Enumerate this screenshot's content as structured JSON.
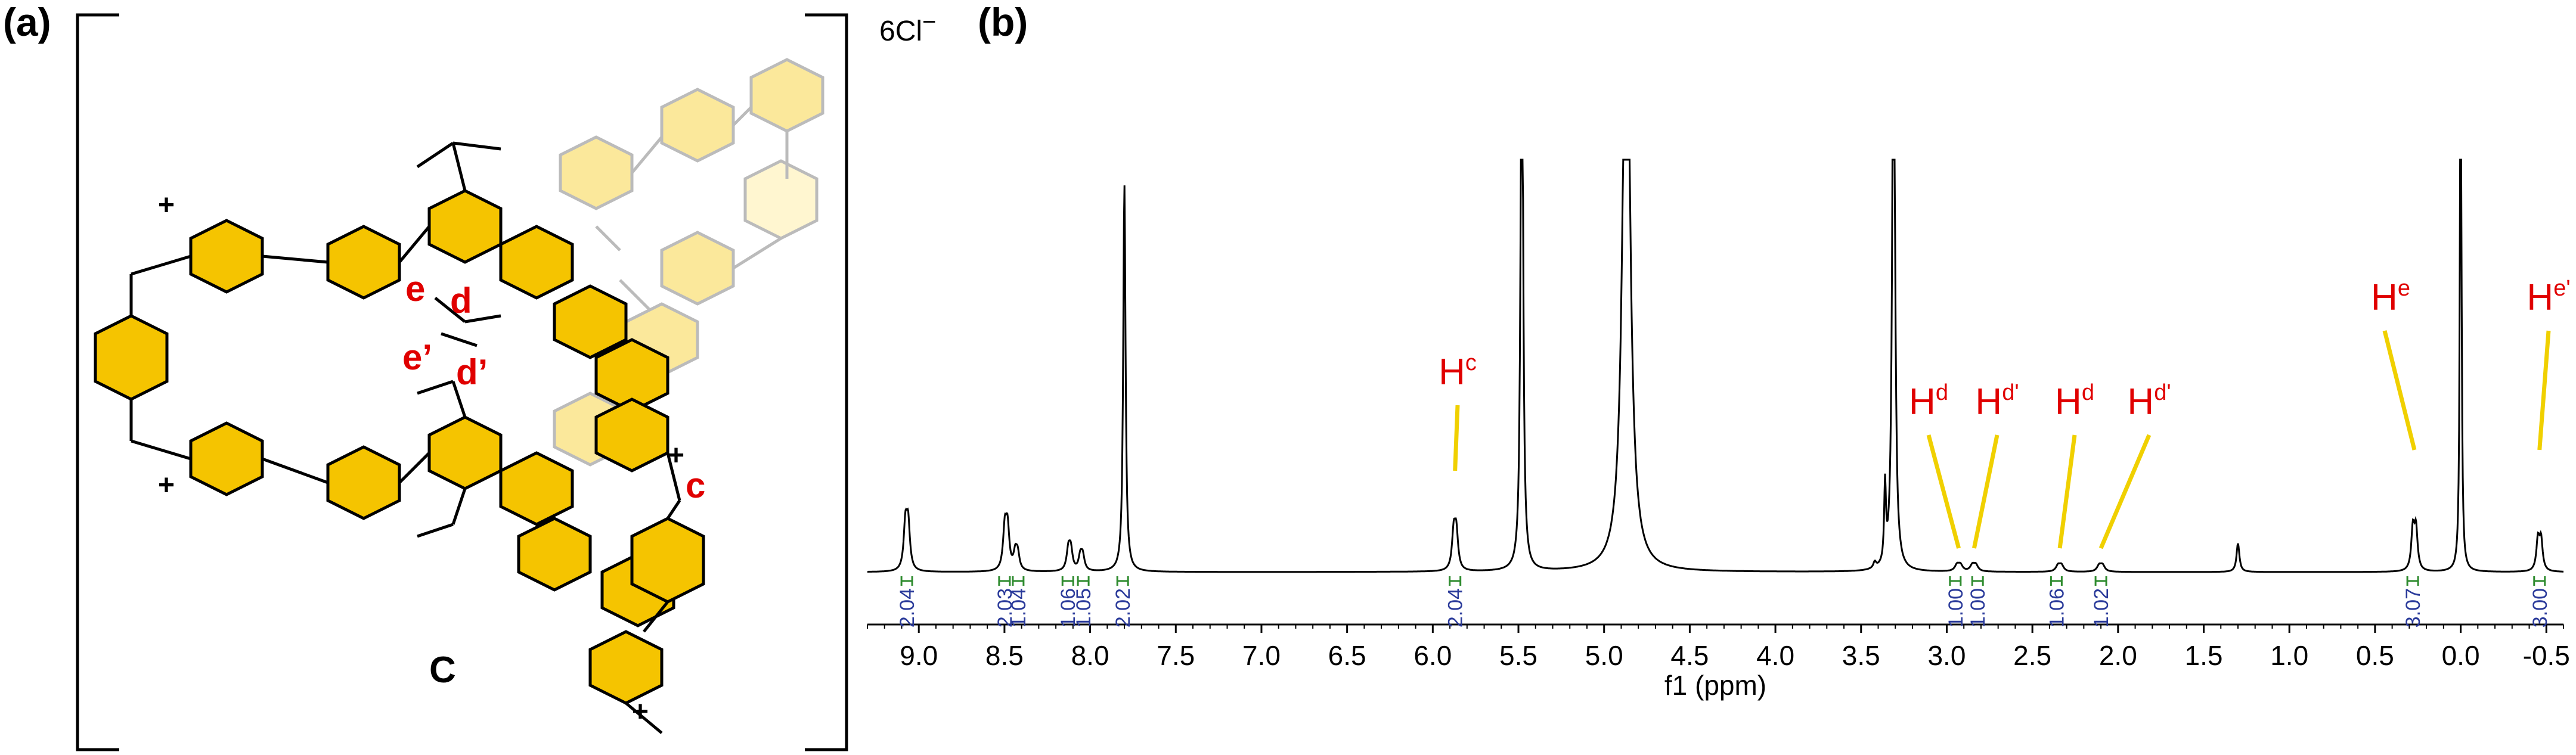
{
  "panel_a": {
    "label": "(a)",
    "compound_label": "C",
    "counterion": "6Cl",
    "counterion_charge": "−",
    "position_labels": [
      {
        "id": "e",
        "text": "e"
      },
      {
        "id": "d",
        "text": "d"
      },
      {
        "id": "e-prime",
        "text": "e’"
      },
      {
        "id": "d-prime",
        "text": "d’"
      },
      {
        "id": "c",
        "text": "c"
      }
    ],
    "charges": [
      "+",
      "+",
      "+",
      "+",
      "+",
      "+"
    ],
    "colors": {
      "ring_fill": "#f5c400",
      "ring_stroke": "#000000",
      "faded": "#b0b0b0",
      "faded_fill": "#fbe58a",
      "label_red": "#e00000"
    }
  },
  "panel_b": {
    "label": "(b)"
  },
  "chart_data": {
    "type": "line",
    "title": "",
    "xlabel": "f1 (ppm)",
    "ylabel": "",
    "xlim": [
      9.3,
      -0.6
    ],
    "x_reversed": true,
    "xticks": [
      9.0,
      8.5,
      8.0,
      7.5,
      7.0,
      6.5,
      6.0,
      5.5,
      5.0,
      4.5,
      4.0,
      3.5,
      3.0,
      2.5,
      2.0,
      1.5,
      1.0,
      0.5,
      0.0,
      -0.5
    ],
    "xtick_labels": [
      "9.0",
      "8.5",
      "8.0",
      "7.5",
      "7.0",
      "6.5",
      "6.0",
      "5.5",
      "5.0",
      "4.5",
      "4.0",
      "3.5",
      "3.0",
      "2.5",
      "2.0",
      "1.5",
      "1.0",
      "0.5",
      "0.0",
      "-0.5"
    ],
    "peaks": [
      {
        "ppm": 9.07,
        "height": 0.22,
        "width": 0.012,
        "doublet": 0.016
      },
      {
        "ppm": 8.49,
        "height": 0.2,
        "width": 0.012,
        "doublet": 0.016
      },
      {
        "ppm": 8.43,
        "height": 0.08,
        "width": 0.012,
        "doublet": 0.014
      },
      {
        "ppm": 8.12,
        "height": 0.1,
        "width": 0.012,
        "doublet": 0.014
      },
      {
        "ppm": 8.05,
        "height": 0.07,
        "width": 0.012,
        "doublet": 0.014
      },
      {
        "ppm": 7.8,
        "height": 0.95,
        "width": 0.008,
        "doublet": 0
      },
      {
        "ppm": 5.87,
        "height": 0.18,
        "width": 0.012,
        "doublet": 0.015
      },
      {
        "ppm": 5.48,
        "height": 1.6,
        "width": 0.008,
        "doublet": 0
      },
      {
        "ppm": 4.87,
        "height": 1.6,
        "width": 0.025,
        "doublet": 0
      },
      {
        "ppm": 3.36,
        "height": 0.19,
        "width": 0.006,
        "doublet": 0
      },
      {
        "ppm": 3.31,
        "height": 1.6,
        "width": 0.009,
        "doublet": 0
      },
      {
        "ppm": 3.42,
        "height": 0.015,
        "width": 0.01,
        "doublet": 0
      },
      {
        "ppm": 2.93,
        "height": 0.03,
        "width": 0.015,
        "doublet": 0.02
      },
      {
        "ppm": 2.84,
        "height": 0.03,
        "width": 0.015,
        "doublet": 0.02
      },
      {
        "ppm": 2.34,
        "height": 0.03,
        "width": 0.015,
        "doublet": 0.02
      },
      {
        "ppm": 2.1,
        "height": 0.03,
        "width": 0.015,
        "doublet": 0.02
      },
      {
        "ppm": 1.3,
        "height": 0.07,
        "width": 0.01,
        "doublet": 0
      },
      {
        "ppm": 0.27,
        "height": 0.2,
        "width": 0.011,
        "doublet": 0.018
      },
      {
        "ppm": 0.0,
        "height": 1.6,
        "width": 0.005,
        "doublet": 0
      },
      {
        "ppm": -0.46,
        "height": 0.15,
        "width": 0.011,
        "doublet": 0.018
      }
    ],
    "integrals": [
      {
        "ppm": 9.07,
        "value": "2.04"
      },
      {
        "ppm": 8.5,
        "value": "2.03"
      },
      {
        "ppm": 8.42,
        "value": "1.04"
      },
      {
        "ppm": 8.13,
        "value": "1.06"
      },
      {
        "ppm": 8.04,
        "value": "1.05"
      },
      {
        "ppm": 7.81,
        "value": "2.02"
      },
      {
        "ppm": 5.87,
        "value": "2.04"
      },
      {
        "ppm": 2.95,
        "value": "1.00"
      },
      {
        "ppm": 2.82,
        "value": "1.00"
      },
      {
        "ppm": 2.36,
        "value": "1.06"
      },
      {
        "ppm": 2.1,
        "value": "1.02"
      },
      {
        "ppm": 0.28,
        "value": "3.07"
      },
      {
        "ppm": -0.46,
        "value": "3.00"
      }
    ],
    "annotations": [
      {
        "main": "H",
        "sup": "c",
        "ppm": 5.87
      },
      {
        "main": "H",
        "sup": "d",
        "ppm": 2.93
      },
      {
        "main": "H",
        "sup": "d'",
        "ppm": 2.84
      },
      {
        "main": "H",
        "sup": "d",
        "ppm": 2.34
      },
      {
        "main": "H",
        "sup": "d'",
        "ppm": 2.1
      },
      {
        "main": "H",
        "sup": "e",
        "ppm": 0.27
      },
      {
        "main": "H",
        "sup": "e'",
        "ppm": -0.46
      }
    ],
    "colors": {
      "trace": "#000000",
      "integral_bracket": "#2e8b2e",
      "integral_text": "#2a3a9a",
      "annotation": "#e00000",
      "pointer_line": "#f0d000"
    }
  }
}
